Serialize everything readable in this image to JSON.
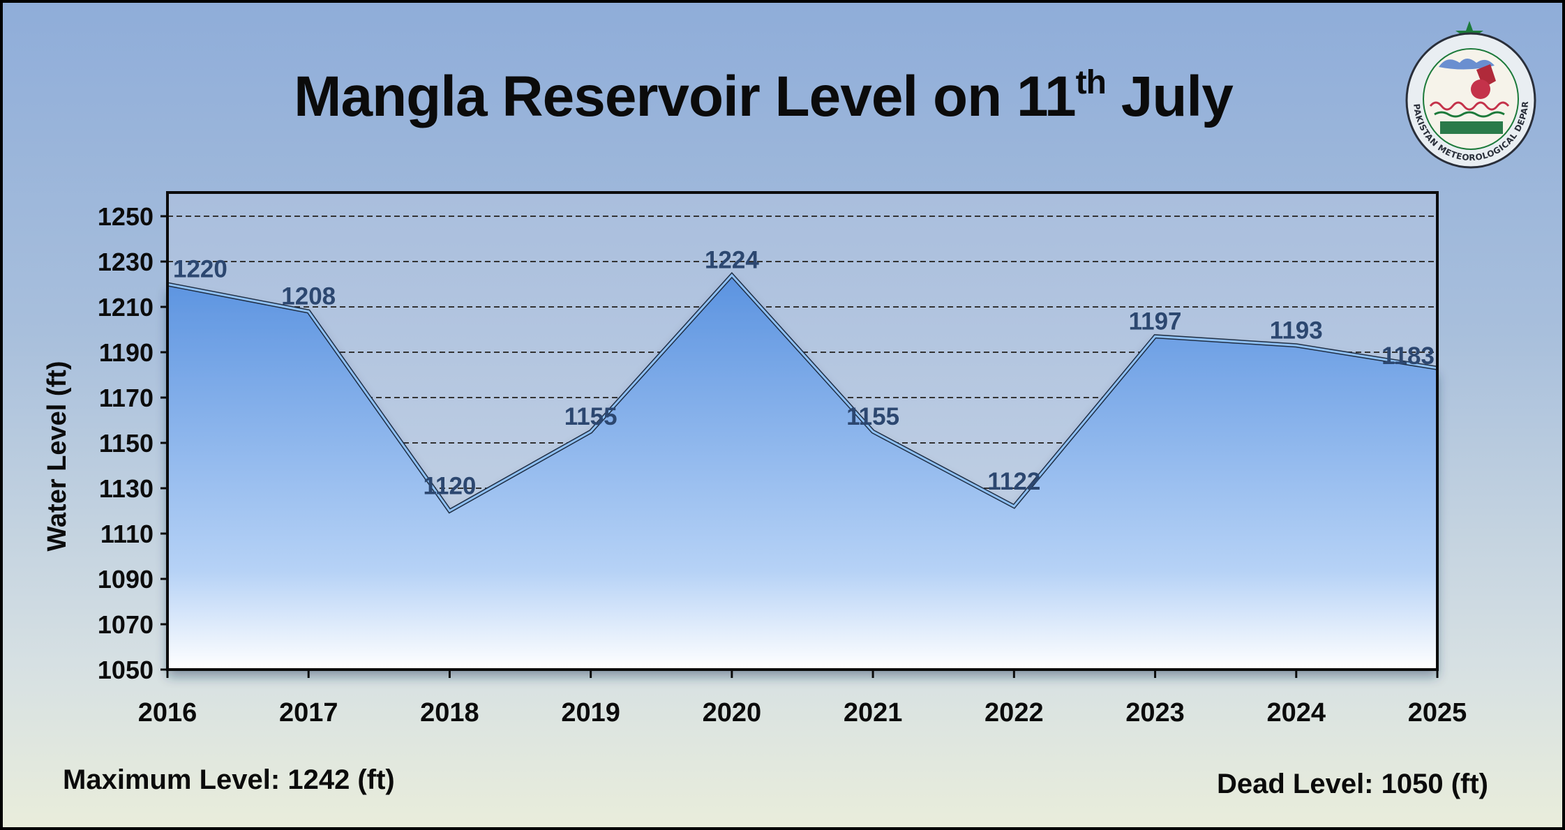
{
  "header": {
    "title_main": "Mangla Reservoir Level on 11",
    "title_sup": "th",
    "title_end": " July"
  },
  "logo": {
    "name": "pmd-seal-icon",
    "text": "PAKISTAN METEOROLOGICAL DEPARTMENT",
    "star_color": "#1c7a3a"
  },
  "footer": {
    "max_level": "Maximum Level: 1242 (ft)",
    "dead_level": "Dead Level: 1050 (ft)"
  },
  "colors": {
    "area_top": "#5b93e0",
    "area_bottom": "#ffffff",
    "line": "#1f2f45",
    "data_label": "#2c4770",
    "grid": "#333333"
  },
  "chart_data": {
    "type": "area",
    "title": "Mangla Reservoir Level on 11th July",
    "xlabel": "",
    "ylabel": "Water Level (ft)",
    "categories": [
      "2016",
      "2017",
      "2018",
      "2019",
      "2020",
      "2021",
      "2022",
      "2023",
      "2024",
      "2025"
    ],
    "values": [
      1220,
      1208,
      1120,
      1155,
      1224,
      1155,
      1122,
      1197,
      1193,
      1183
    ],
    "ylim": [
      1050,
      1250
    ],
    "yticks": [
      1050,
      1070,
      1090,
      1110,
      1130,
      1150,
      1170,
      1190,
      1210,
      1230,
      1250
    ],
    "grid": "horizontal dashed",
    "data_labels": true
  }
}
